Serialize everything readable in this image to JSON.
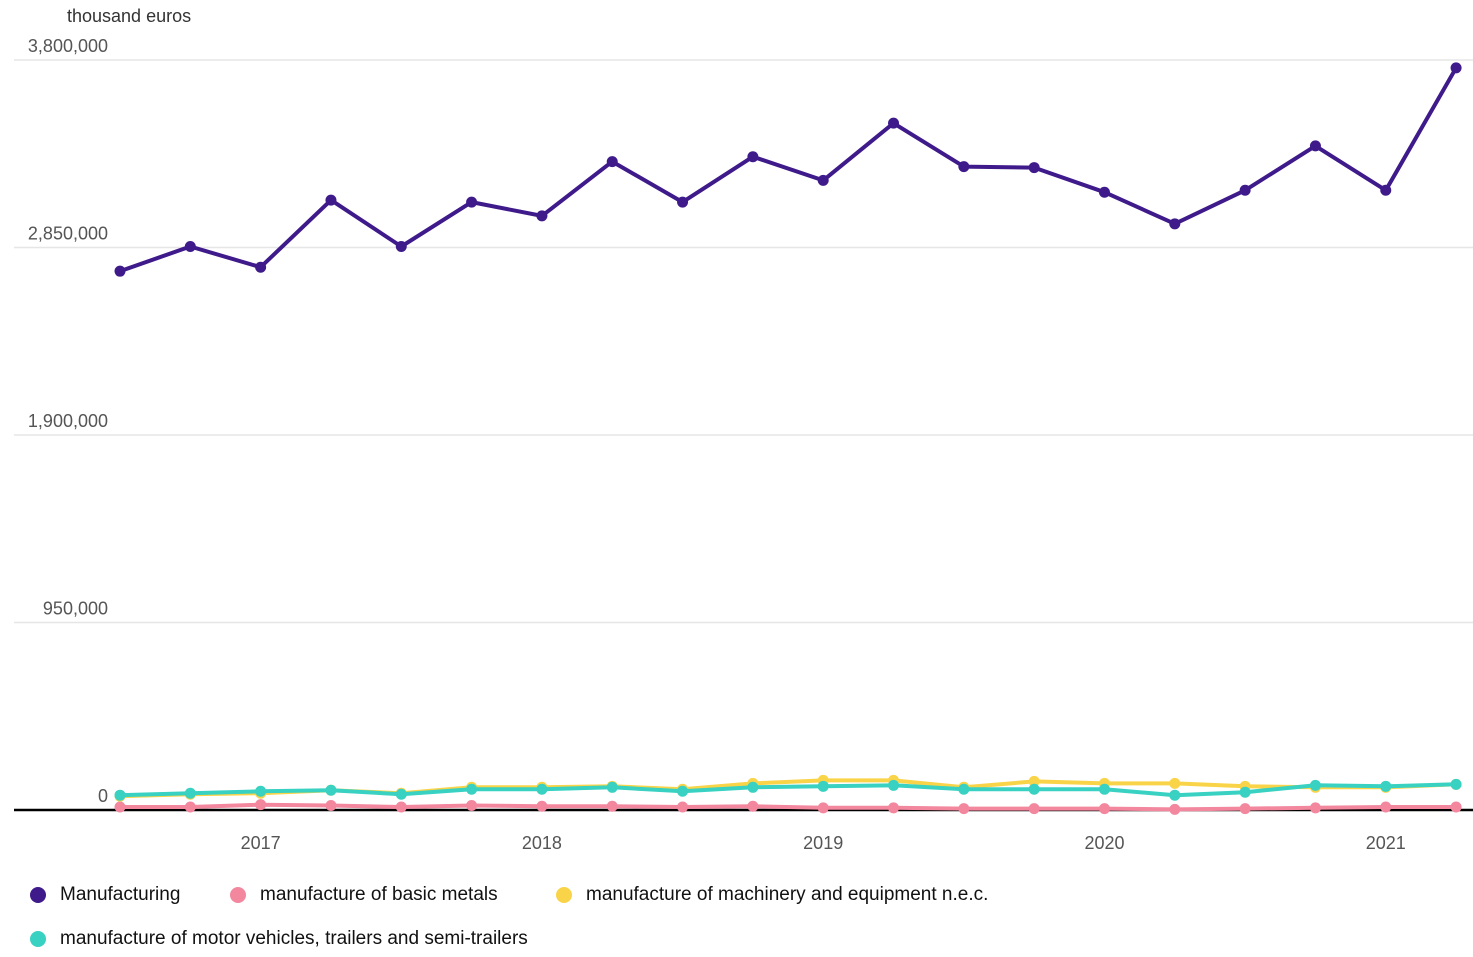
{
  "chart_data": {
    "type": "line",
    "unit_label": "thousand euros",
    "ylim": [
      0,
      3800000
    ],
    "y_ticks": [
      0,
      950000,
      1900000,
      2850000,
      3800000
    ],
    "y_tick_labels": [
      "0",
      "950,000",
      "1,900,000",
      "2,850,000",
      "3,800,000"
    ],
    "x_tick_labels": [
      "2017",
      "2018",
      "2019",
      "2020",
      "2021"
    ],
    "x": [
      "2016Q3",
      "2016Q4",
      "2017Q1",
      "2017Q2",
      "2017Q3",
      "2017Q4",
      "2018Q1",
      "2018Q2",
      "2018Q3",
      "2018Q4",
      "2019Q1",
      "2019Q2",
      "2019Q3",
      "2019Q4",
      "2020Q1",
      "2020Q2",
      "2020Q3",
      "2020Q4",
      "2021Q1",
      "2021Q2"
    ],
    "grid": true,
    "legend_position": "bottom",
    "series": [
      {
        "name": "Manufacturing",
        "color": "#3f1a8a",
        "values": [
          2730000,
          2855000,
          2750000,
          3090000,
          2855000,
          3080000,
          3010000,
          3285000,
          3080000,
          3310000,
          3190000,
          3480000,
          3260000,
          3255000,
          3130000,
          2970000,
          3140000,
          3365000,
          3140000,
          3760000
        ]
      },
      {
        "name": "manufacture of basic metals",
        "color": "#f2879e",
        "values": [
          15000,
          15000,
          27000,
          23000,
          15000,
          23000,
          19000,
          19000,
          15000,
          19000,
          11000,
          11000,
          7000,
          7000,
          7000,
          3000,
          7000,
          11000,
          15000,
          15000
        ]
      },
      {
        "name": "manufacture of machinery and equipment n.e.c.",
        "color": "#f9d449",
        "values": [
          70000,
          80000,
          85000,
          100000,
          85000,
          115000,
          115000,
          120000,
          105000,
          135000,
          150000,
          150000,
          115000,
          145000,
          135000,
          135000,
          120000,
          115000,
          115000,
          130000
        ]
      },
      {
        "name": "manufacture of motor vehicles, trailers and semi-trailers",
        "color": "#38d1c2",
        "values": [
          75000,
          85000,
          95000,
          100000,
          80000,
          105000,
          105000,
          115000,
          95000,
          115000,
          120000,
          125000,
          105000,
          105000,
          105000,
          75000,
          90000,
          125000,
          120000,
          130000
        ]
      }
    ]
  }
}
